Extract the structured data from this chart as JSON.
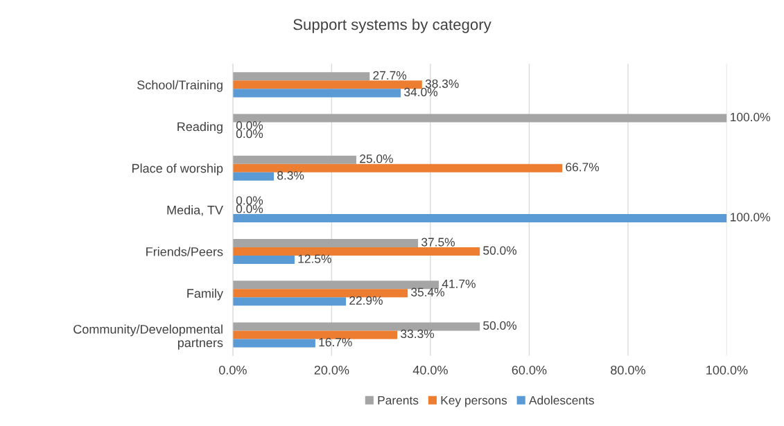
{
  "chart_data": {
    "type": "bar",
    "orientation": "horizontal",
    "title": "Support systems by category",
    "categories": [
      "School/Training",
      "Reading",
      "Place of worship",
      "Media, TV",
      "Friends/Peers",
      "Family",
      "Community/Developmental\npartners"
    ],
    "series": [
      {
        "name": "Parents",
        "color": "#a5a5a5",
        "values": [
          27.7,
          100,
          25.0,
          0,
          37.5,
          41.7,
          50.0
        ],
        "value_labels": [
          "27.7%",
          "100.0%",
          "25.0%",
          "0.0%",
          "37.5%",
          "41.7%",
          "50.0%"
        ]
      },
      {
        "name": "Key persons",
        "color": "#ed7d31",
        "values": [
          38.3,
          0,
          66.7,
          0,
          50.0,
          35.4,
          33.3
        ],
        "value_labels": [
          "38.3%",
          "0.0%",
          "66.7%",
          "0.0%",
          "50.0%",
          "35.4%",
          "33.3%"
        ]
      },
      {
        "name": "Adolescents",
        "color": "#5b9bd5",
        "values": [
          34.0,
          0,
          8.3,
          100,
          12.5,
          22.9,
          16.7
        ],
        "value_labels": [
          "34.0%",
          "0.0%",
          "8.3%",
          "100.0%",
          "12.5%",
          "22.9%",
          "16.7%"
        ]
      }
    ],
    "xlim": [
      0,
      100
    ],
    "xticks": [
      {
        "value": 0,
        "label": "0.0%"
      },
      {
        "value": 20,
        "label": "20.0%"
      },
      {
        "value": 40,
        "label": "40.0%"
      },
      {
        "value": 60,
        "label": "60.0%"
      },
      {
        "value": 80,
        "label": "80.0%"
      },
      {
        "value": 100,
        "label": "100.0%"
      }
    ],
    "grid": "x",
    "legend": "bottom"
  }
}
